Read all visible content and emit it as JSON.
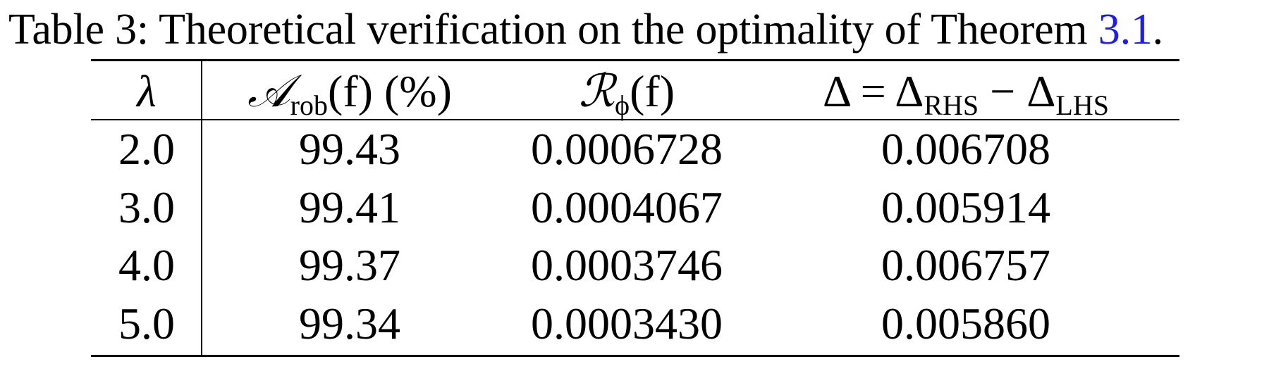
{
  "caption": {
    "prefix": "Table 3: Theoretical verification on the optimality of Theorem ",
    "ref": "3.1",
    "suffix": "."
  },
  "headers": {
    "lambda": "λ",
    "acc_symbol": "𝒜",
    "acc_sub": "rob",
    "acc_arg": "(f) (%)",
    "risk_symbol": "ℛ",
    "risk_sub": "ϕ",
    "risk_arg": "(f)",
    "delta_lhs": "Δ = Δ",
    "delta_sub1": "RHS",
    "delta_mid": " − Δ",
    "delta_sub2": "LHS"
  },
  "rows": [
    {
      "lambda": "2.0",
      "acc": "99.43",
      "risk": "0.0006728",
      "delta": "0.006708"
    },
    {
      "lambda": "3.0",
      "acc": "99.41",
      "risk": "0.0004067",
      "delta": "0.005914"
    },
    {
      "lambda": "4.0",
      "acc": "99.37",
      "risk": "0.0003746",
      "delta": "0.006757"
    },
    {
      "lambda": "5.0",
      "acc": "99.34",
      "risk": "0.0003430",
      "delta": "0.005860"
    }
  ],
  "colors": {
    "link": "#1a1aff"
  }
}
